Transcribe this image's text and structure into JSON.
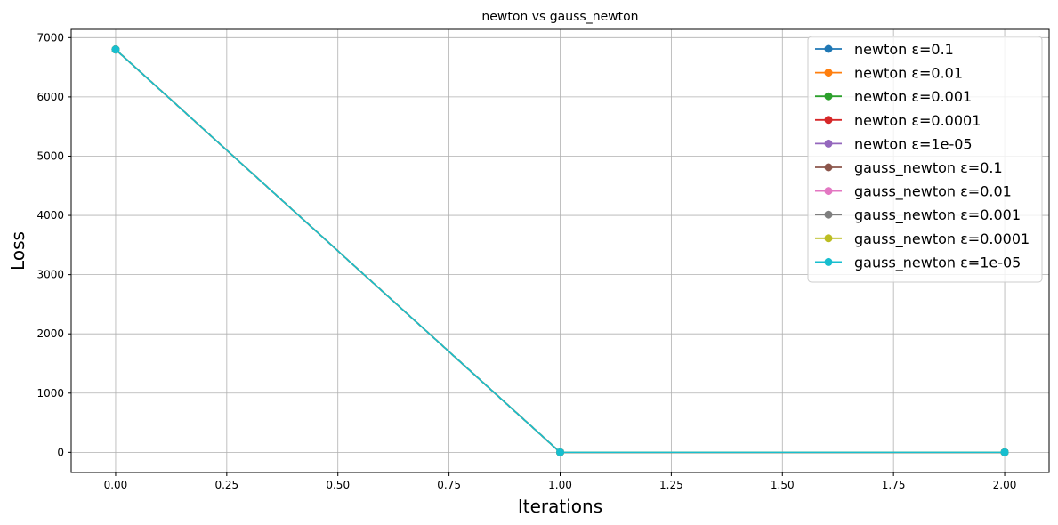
{
  "chart_data": {
    "type": "line",
    "title": "newton vs gauss_newton",
    "xlabel": "Iterations",
    "ylabel": "Loss",
    "x": [
      0,
      1,
      2
    ],
    "xlim": [
      -0.1,
      2.1
    ],
    "ylim": [
      -340,
      7140
    ],
    "xticks": [
      0.0,
      0.25,
      0.5,
      0.75,
      1.0,
      1.25,
      1.5,
      1.75,
      2.0
    ],
    "xtick_labels": [
      "0.00",
      "0.25",
      "0.50",
      "0.75",
      "1.00",
      "1.25",
      "1.50",
      "1.75",
      "2.00"
    ],
    "yticks": [
      0,
      1000,
      2000,
      3000,
      4000,
      5000,
      6000,
      7000
    ],
    "ytick_labels": [
      "0",
      "1000",
      "2000",
      "3000",
      "4000",
      "5000",
      "6000",
      "7000"
    ],
    "grid": true,
    "legend_position": "top-right",
    "series": [
      {
        "name": "newton ε=0.1",
        "color": "#1f77b4",
        "values": [
          6800,
          0,
          0
        ]
      },
      {
        "name": "newton ε=0.01",
        "color": "#ff7f0e",
        "values": [
          6800,
          0,
          0
        ]
      },
      {
        "name": "newton ε=0.001",
        "color": "#2ca02c",
        "values": [
          6800,
          0,
          0
        ]
      },
      {
        "name": "newton ε=0.0001",
        "color": "#d62728",
        "values": [
          6800,
          0,
          0
        ]
      },
      {
        "name": "newton ε=1e-05",
        "color": "#9467bd",
        "values": [
          6800,
          0,
          0
        ]
      },
      {
        "name": "gauss_newton ε=0.1",
        "color": "#8c564b",
        "values": [
          6800,
          0,
          0
        ]
      },
      {
        "name": "gauss_newton ε=0.01",
        "color": "#e377c2",
        "values": [
          6800,
          0,
          0
        ]
      },
      {
        "name": "gauss_newton ε=0.001",
        "color": "#7f7f7f",
        "values": [
          6800,
          0,
          0
        ]
      },
      {
        "name": "gauss_newton ε=0.0001",
        "color": "#bcbd22",
        "values": [
          6800,
          0,
          0
        ]
      },
      {
        "name": "gauss_newton ε=1e-05",
        "color": "#17becf",
        "values": [
          6800,
          0,
          0
        ]
      }
    ]
  }
}
